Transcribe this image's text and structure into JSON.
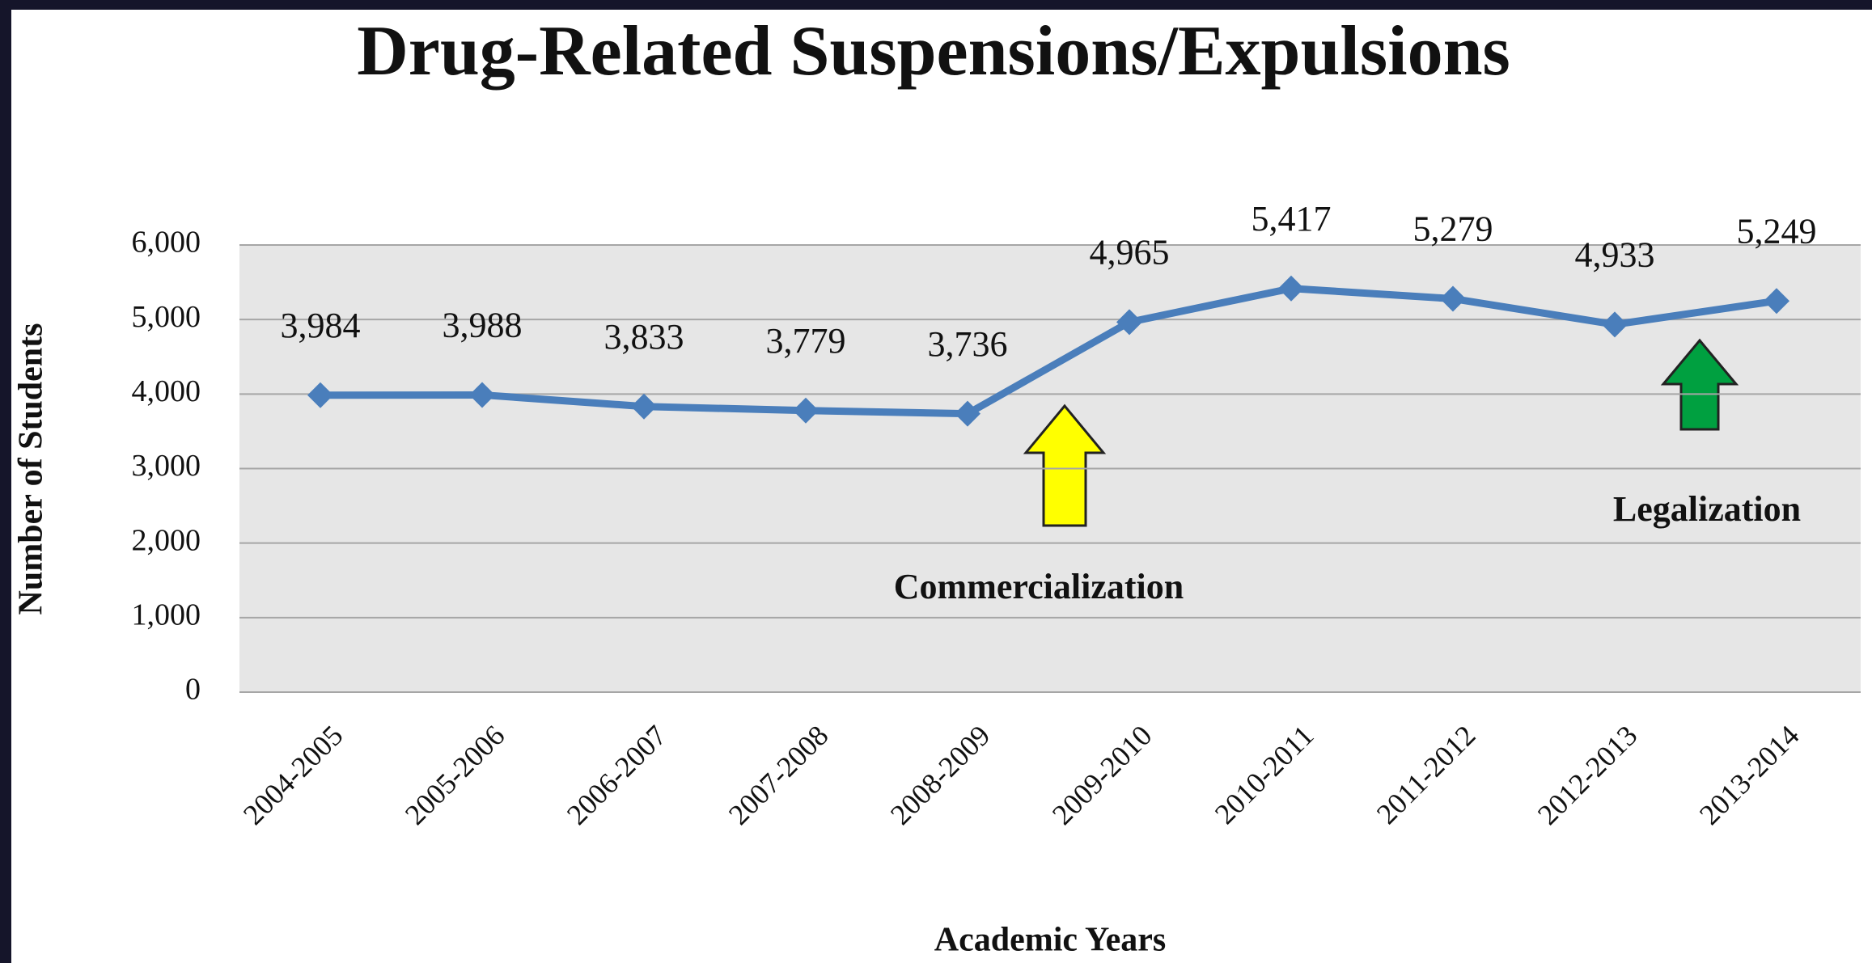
{
  "chart_data": {
    "type": "line",
    "title": "Drug-Related Suspensions/Expulsions",
    "x_label": "Academic Years",
    "y_label": "Number of Students",
    "categories": [
      "2004-2005",
      "2005-2006",
      "2006-2007",
      "2007-2008",
      "2008-2009",
      "2009-2010",
      "2010-2011",
      "2011-2012",
      "2012-2013",
      "2013-2014"
    ],
    "series": [
      {
        "name": "Number of Students",
        "color": "#4a7ebb",
        "values": [
          3984,
          3988,
          3833,
          3779,
          3736,
          4965,
          5417,
          5279,
          4933,
          5249
        ],
        "value_labels": [
          "3,984",
          "3,988",
          "3,833",
          "3,779",
          "3,736",
          "4,965",
          "5,417",
          "5,279",
          "4,933",
          "5,249"
        ]
      }
    ],
    "ylim": [
      0,
      6000
    ],
    "yticks": [
      0,
      {
        "value": 1000,
        "label": "1,000"
      },
      {
        "value": 2000,
        "label": "2,000"
      },
      {
        "value": 3000,
        "label": "3,000"
      },
      {
        "value": 4000,
        "label": "4,000"
      },
      {
        "value": 5000,
        "label": "5,000"
      },
      {
        "value": 6000,
        "label": "6,000"
      }
    ],
    "grid": true,
    "annotations": [
      "Commercialization",
      "Legalization"
    ]
  }
}
